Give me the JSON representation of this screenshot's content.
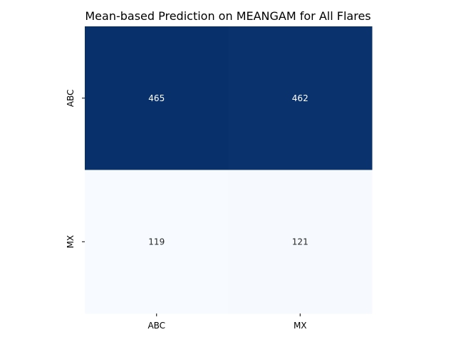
{
  "chart_data": {
    "type": "heatmap",
    "title": "Mean-based Prediction on MEANGAM for All Flares",
    "xlabel": "",
    "ylabel": "",
    "x_categories": [
      "ABC",
      "MX"
    ],
    "y_categories": [
      "ABC",
      "MX"
    ],
    "values": [
      [
        465,
        462
      ],
      [
        119,
        121
      ]
    ],
    "colormap": "Blues",
    "colorbar": false,
    "value_range": [
      119,
      465
    ],
    "colors": {
      "low": "#f7fbff",
      "high": "#08306b",
      "text_on_dark": "#ffffff",
      "text_on_light": "#262626"
    }
  }
}
